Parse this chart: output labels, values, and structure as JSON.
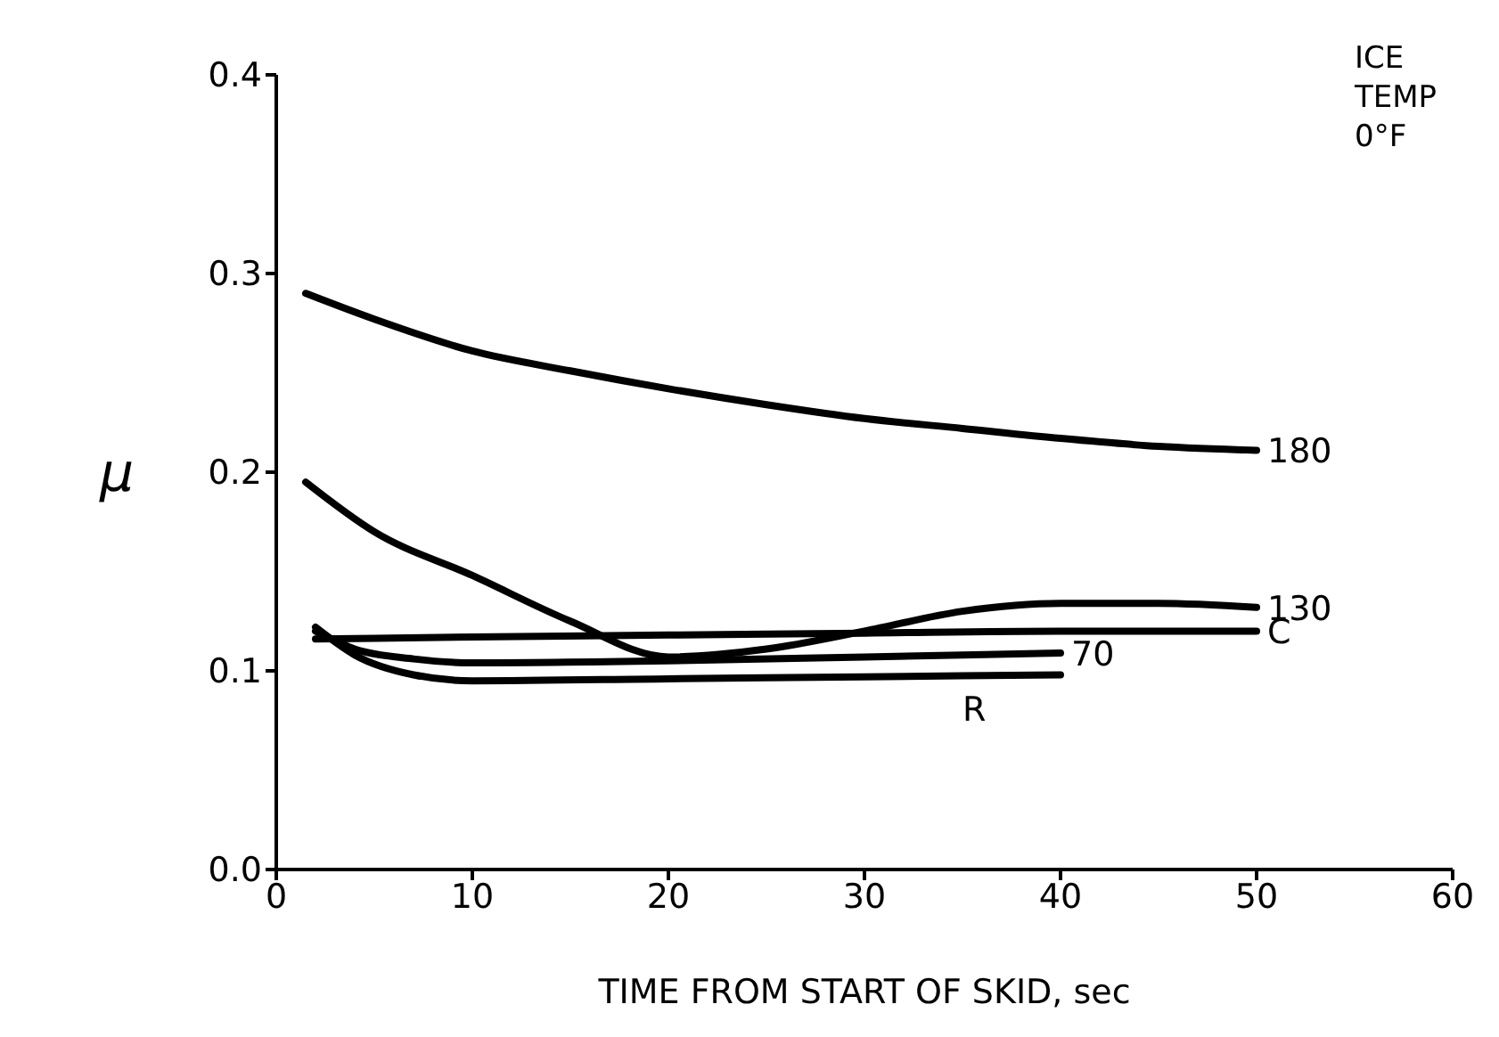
{
  "chart_data": {
    "type": "line",
    "xlabel": "TIME  FROM  START  OF  SKID,  sec",
    "ylabel": "μ",
    "xlim": [
      0,
      60
    ],
    "xticks": [
      0,
      10,
      20,
      30,
      40,
      50,
      60
    ],
    "ylim": [
      0,
      0.4
    ],
    "yticks": [
      {
        "value": 0,
        "label": "0.0"
      },
      {
        "value": 0.1,
        "label": "0.1"
      },
      {
        "value": 0.2,
        "label": "0.2"
      },
      {
        "value": 0.3,
        "label": "0.3"
      },
      {
        "value": 0.4,
        "label": "0.4"
      }
    ],
    "grid": false,
    "legend": false,
    "marker": "none",
    "line_style": "solid",
    "annotations": [
      "ICE\nTEMP\n0°F"
    ],
    "series": [
      {
        "name": "180",
        "color": "#000000",
        "x": [
          1.5,
          5,
          10,
          15,
          20,
          25,
          30,
          35,
          40,
          45,
          50
        ],
        "values": [
          0.29,
          0.277,
          0.261,
          0.251,
          0.242,
          0.234,
          0.227,
          0.222,
          0.217,
          0.213,
          0.211
        ]
      },
      {
        "name": "130",
        "color": "#000000",
        "x": [
          1.5,
          5,
          10,
          15,
          20,
          25,
          30,
          35,
          40,
          45,
          50
        ],
        "values": [
          0.195,
          0.17,
          0.148,
          0.125,
          0.107,
          0.111,
          0.12,
          0.13,
          0.134,
          0.134,
          0.132
        ]
      },
      {
        "name": "C",
        "color": "#000000",
        "x": [
          2,
          10,
          20,
          30,
          40,
          50
        ],
        "values": [
          0.116,
          0.117,
          0.118,
          0.119,
          0.12,
          0.12
        ]
      },
      {
        "name": "70",
        "color": "#000000",
        "x": [
          2,
          4,
          7,
          10,
          20,
          30,
          40
        ],
        "values": [
          0.12,
          0.111,
          0.106,
          0.104,
          0.105,
          0.107,
          0.109
        ]
      },
      {
        "name": "R",
        "color": "#000000",
        "x": [
          2,
          4,
          7,
          10,
          20,
          30,
          40
        ],
        "values": [
          0.122,
          0.108,
          0.098,
          0.095,
          0.096,
          0.097,
          0.098
        ]
      }
    ]
  }
}
